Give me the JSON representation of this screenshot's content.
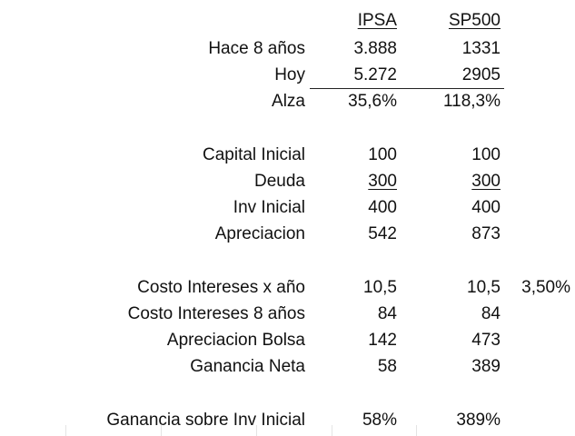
{
  "headers": {
    "ipsa": "IPSA",
    "sp500": "SP500"
  },
  "rows": [
    {
      "label": "Hace 8 años",
      "ipsa": "3.888",
      "sp500": "1331"
    },
    {
      "label": "Hoy",
      "ipsa": "5.272",
      "sp500": "2905"
    },
    {
      "label": "Alza",
      "ipsa": "35,6%",
      "sp500": "118,3%"
    },
    {
      "label": "Capital Inicial",
      "ipsa": "100",
      "sp500": "100"
    },
    {
      "label": "Deuda",
      "ipsa": "300",
      "sp500": "300"
    },
    {
      "label": "Inv Inicial",
      "ipsa": "400",
      "sp500": "400"
    },
    {
      "label": "Apreciacion",
      "ipsa": "542",
      "sp500": "873"
    },
    {
      "label": "Costo Intereses x año",
      "ipsa": "10,5",
      "sp500": "10,5",
      "extra": "3,50%"
    },
    {
      "label": "Costo Intereses 8 años",
      "ipsa": "84",
      "sp500": "84"
    },
    {
      "label": "Apreciacion Bolsa",
      "ipsa": "142",
      "sp500": "473"
    },
    {
      "label": "Ganancia Neta",
      "ipsa": "58",
      "sp500": "389"
    },
    {
      "label": "Ganancia sobre Inv Inicial",
      "ipsa": "58%",
      "sp500": "389%"
    }
  ]
}
